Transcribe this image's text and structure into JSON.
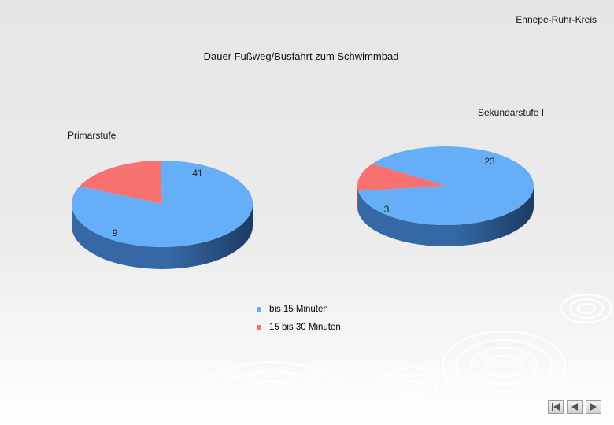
{
  "header": {
    "text": "Ennepe-Ruhr-Kreis"
  },
  "chart_data": {
    "type": "pie",
    "title": "Dauer Fußweg/Busfahrt zum Schwimmbad",
    "legend": {
      "position": "bottom-center",
      "entries": [
        {
          "name": "bis 15 Minuten",
          "color": "#66aef7"
        },
        {
          "name": "15 bis 30 Minuten",
          "color": "#f77171"
        }
      ]
    },
    "pies": [
      {
        "label": "Primarstufe",
        "slices": [
          {
            "category": "bis 15 Minuten",
            "value": 41
          },
          {
            "category": "15 bis 30 Minuten",
            "value": 9
          }
        ]
      },
      {
        "label": "Sekundarstufe I",
        "slices": [
          {
            "category": "bis 15 Minuten",
            "value": 23
          },
          {
            "category": "15 bis 30 Minuten",
            "value": 3
          }
        ]
      }
    ],
    "style": "3d"
  },
  "colors": {
    "blue": "#66aef7",
    "blue_side": "#3568a4",
    "blue_side_dark": "#1d3b63",
    "red": "#f77171",
    "red_side": "#c64a4a",
    "red_side_dark": "#8c2e2e"
  },
  "navigation": [
    {
      "icon": "first-slide-icon"
    },
    {
      "icon": "previous-slide-icon"
    },
    {
      "icon": "next-slide-icon"
    }
  ]
}
